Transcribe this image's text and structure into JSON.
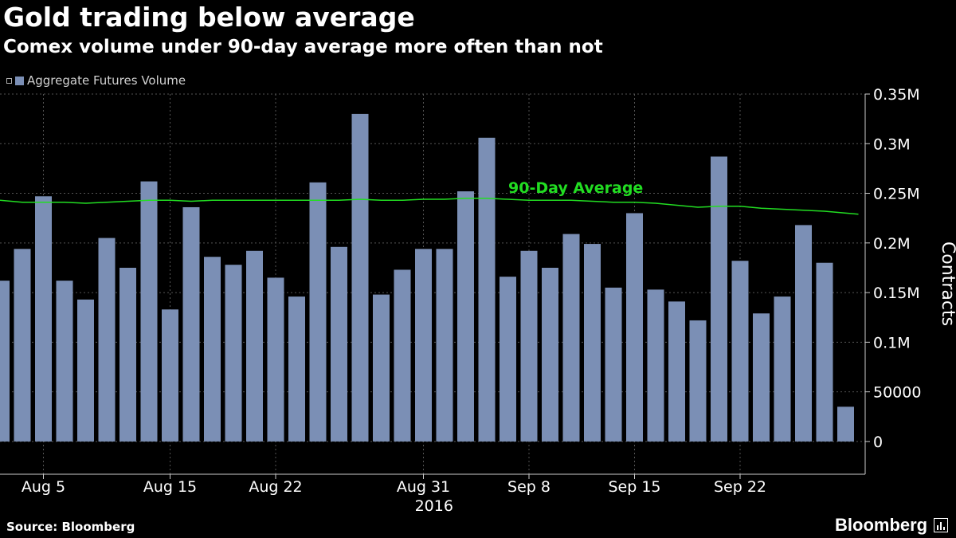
{
  "header": {
    "title": "Gold trading below average",
    "subtitle": "Comex volume under 90-day average more often than not"
  },
  "legend": {
    "label": "Aggregate Futures Volume"
  },
  "footer": {
    "source": "Source: Bloomberg",
    "brand": "Bloomberg"
  },
  "colors": {
    "background": "#000000",
    "bar": "#7b8fb5",
    "average_line": "#22dd22",
    "grid": "#555555",
    "text": "#ffffff"
  },
  "chart_data": {
    "type": "bar",
    "title": "Gold trading below average",
    "subtitle": "Comex volume under 90-day average more often than not",
    "ylabel": "Contracts",
    "ylim": [
      -33000,
      350000.0
    ],
    "yticks": [
      {
        "value": 0,
        "label": "0"
      },
      {
        "value": 50000,
        "label": "50000"
      },
      {
        "value": 100000,
        "label": "0.1M"
      },
      {
        "value": 150000,
        "label": "0.15M"
      },
      {
        "value": 200000,
        "label": "0.2M"
      },
      {
        "value": 250000,
        "label": "0.25M"
      },
      {
        "value": 300000,
        "label": "0.3M"
      },
      {
        "value": 350000,
        "label": "0.35M"
      }
    ],
    "xticks": [
      {
        "index": 2,
        "label": "Aug 5"
      },
      {
        "index": 8,
        "label": "Aug 15"
      },
      {
        "index": 13,
        "label": "Aug 22"
      },
      {
        "index": 20,
        "label": "Aug 31"
      },
      {
        "index": 25,
        "label": "Sep 8"
      },
      {
        "index": 30,
        "label": "Sep 15"
      },
      {
        "index": 35,
        "label": "Sep 22"
      }
    ],
    "year_label": {
      "index": 20.5,
      "label": "2016"
    },
    "grid": true,
    "legend_position": "top-left",
    "series": [
      {
        "name": "Aggregate Futures Volume",
        "type": "bar",
        "values": [
          162000,
          194000,
          247000,
          162000,
          143000,
          205000,
          175000,
          262000,
          133000,
          236000,
          186000,
          178000,
          192000,
          165000,
          146000,
          261000,
          196000,
          330000,
          148000,
          173000,
          194000,
          194000,
          252000,
          306000,
          166000,
          192000,
          175000,
          209000,
          199000,
          155000,
          230000,
          153000,
          141000,
          122000,
          287000,
          182000,
          129000,
          146000,
          218000,
          180000,
          35000
        ]
      },
      {
        "name": "90-Day Average",
        "type": "line",
        "values": [
          243000,
          241000,
          241000,
          241000,
          240000,
          241000,
          242000,
          243000,
          243000,
          242000,
          243000,
          243000,
          243000,
          243000,
          243000,
          243000,
          243000,
          244000,
          243000,
          243000,
          244000,
          244000,
          245000,
          245000,
          244000,
          243000,
          243000,
          243000,
          242000,
          241000,
          241000,
          240000,
          238000,
          236000,
          237000,
          237000,
          235000,
          234000,
          233000,
          232000,
          229000
        ]
      }
    ]
  }
}
